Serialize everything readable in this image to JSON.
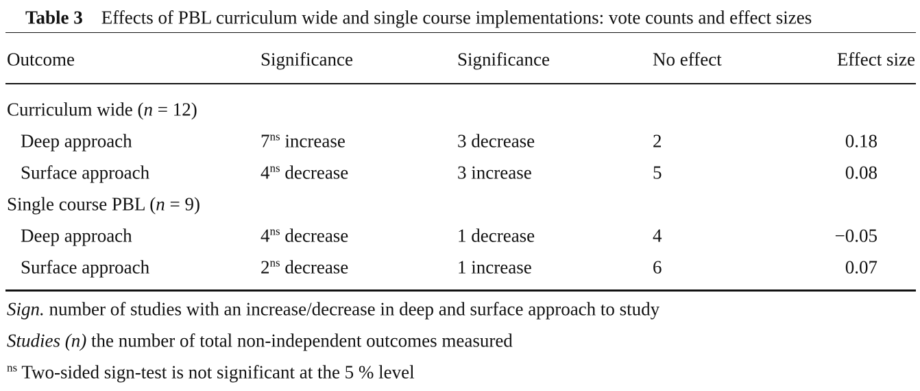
{
  "title": {
    "label": "Table 3",
    "text": "Effects of PBL curriculum wide and single course implementations: vote counts and effect sizes"
  },
  "table": {
    "headers": [
      "Outcome",
      "Significance",
      "Significance",
      "No effect",
      "Effect size"
    ],
    "groups": [
      {
        "label": [
          {
            "text": "Curriculum wide ("
          },
          {
            "text": "n",
            "italic": true
          },
          {
            "text": " = 12)"
          }
        ],
        "rows": [
          [
            [
              {
                "text": "Deep approach"
              }
            ],
            [
              {
                "text": "7"
              },
              {
                "text": "ns",
                "sup": true
              },
              {
                "text": " increase"
              }
            ],
            [
              {
                "text": "3 decrease"
              }
            ],
            [
              {
                "text": "2"
              }
            ],
            [
              {
                "text": "0.18"
              }
            ]
          ],
          [
            [
              {
                "text": "Surface approach"
              }
            ],
            [
              {
                "text": "4"
              },
              {
                "text": "ns",
                "sup": true
              },
              {
                "text": " decrease"
              }
            ],
            [
              {
                "text": "3 increase"
              }
            ],
            [
              {
                "text": "5"
              }
            ],
            [
              {
                "text": "0.08"
              }
            ]
          ]
        ]
      },
      {
        "label": [
          {
            "text": "Single course PBL ("
          },
          {
            "text": "n",
            "italic": true
          },
          {
            "text": " = 9)"
          }
        ],
        "rows": [
          [
            [
              {
                "text": "Deep approach"
              }
            ],
            [
              {
                "text": "4"
              },
              {
                "text": "ns",
                "sup": true
              },
              {
                "text": " decrease"
              }
            ],
            [
              {
                "text": "1 decrease"
              }
            ],
            [
              {
                "text": "4"
              }
            ],
            [
              {
                "text": "−0.05"
              }
            ]
          ],
          [
            [
              {
                "text": "Surface approach"
              }
            ],
            [
              {
                "text": "2"
              },
              {
                "text": "ns",
                "sup": true
              },
              {
                "text": " decrease"
              }
            ],
            [
              {
                "text": "1 increase"
              }
            ],
            [
              {
                "text": "6"
              }
            ],
            [
              {
                "text": "0.07"
              }
            ]
          ]
        ]
      }
    ]
  },
  "footnotes": [
    [
      {
        "text": "Sign.",
        "italic": true
      },
      {
        "text": " number of studies with an increase/decrease in deep and surface approach to study"
      }
    ],
    [
      {
        "text": "Studies (n)",
        "italic": true
      },
      {
        "text": " the number of total non-independent outcomes measured"
      }
    ],
    [
      {
        "text": "ns",
        "sup": true
      },
      {
        "text": " Two-sided sign-test is not significant at the 5 % level"
      }
    ]
  ]
}
